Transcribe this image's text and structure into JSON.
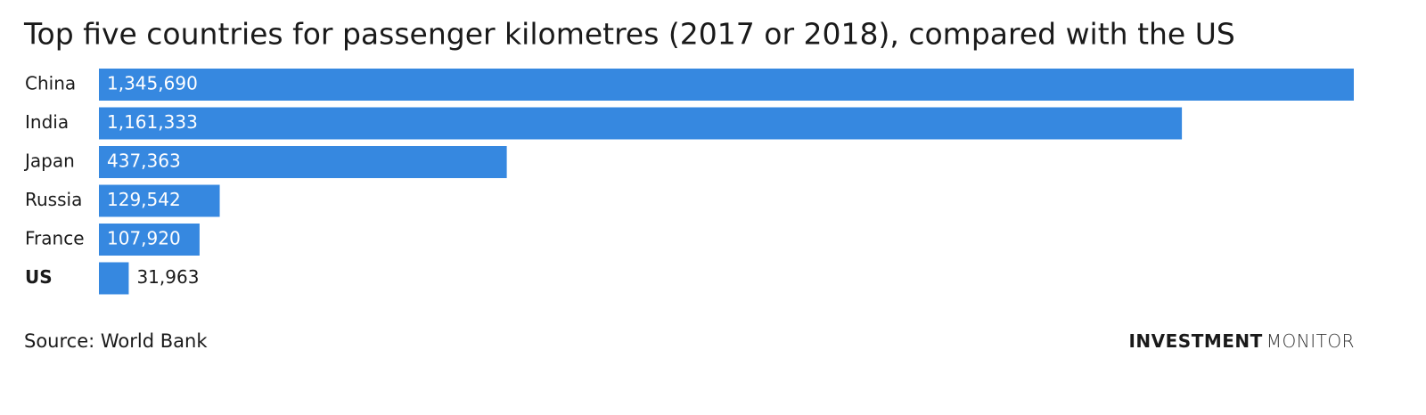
{
  "chart_data": {
    "type": "bar",
    "orientation": "horizontal",
    "title": "Top five countries for passenger kilometres (2017 or 2018), compared with the US",
    "categories": [
      "China",
      "India",
      "Japan",
      "Russia",
      "France",
      "US"
    ],
    "values": [
      1345690,
      1161333,
      437363,
      129542,
      107920,
      31963
    ],
    "value_labels": [
      "1,345,690",
      "1,161,333",
      "437,363",
      "129,542",
      "107,920",
      "31,963"
    ],
    "color": "#3688e0",
    "source": "Source: World Bank",
    "brand": {
      "bold": "INVESTMENT",
      "light": "MONITOR"
    }
  }
}
